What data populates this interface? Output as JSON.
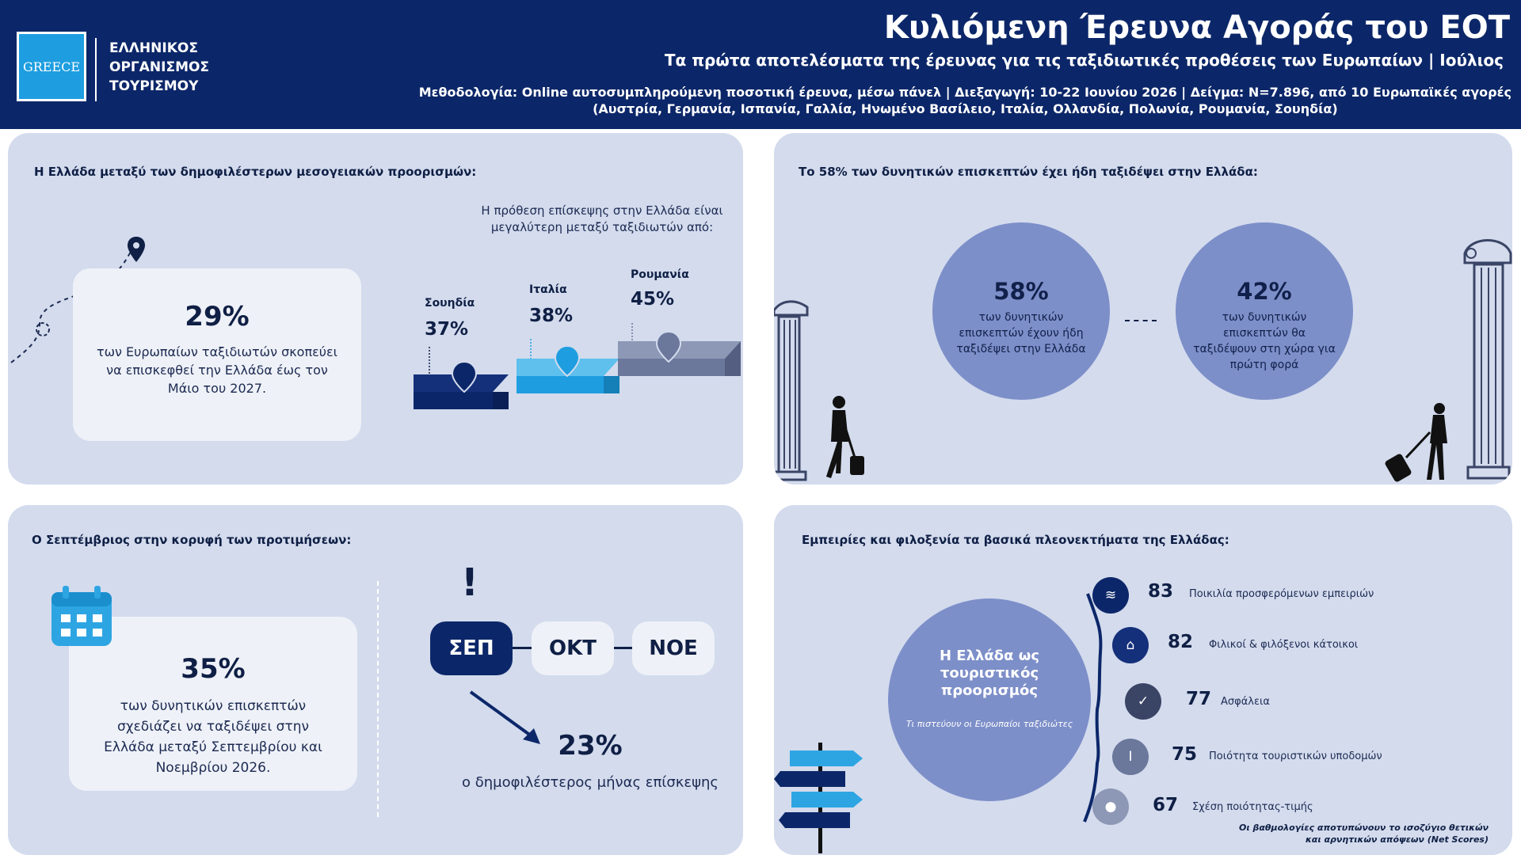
{
  "header": {
    "logo_text": "GREECE",
    "org_line1": "ΕΛΛΗΝΙΚΟΣ",
    "org_line2": "ΟΡΓΑΝΙΣΜΟΣ",
    "org_line3": "ΤΟΥΡΙΣΜΟΥ",
    "title": "Κυλιόμενη Έρευνα Αγοράς του ΕΟΤ",
    "subtitle": "Τα πρώτα αποτελέσματα της έρευνας για τις ταξιδιωτικές προθέσεις των Ευρωπαίων  | Ιούλιος",
    "methodology_line1": "Μεθοδολογία: Online αυτοσυμπληρούμενη ποσοτική έρευνα, μέσω πάνελ | Διεξαγωγή: 10-22 Ιουνίου 2026 | Δείγμα: Ν=7.896, από 10 Ευρωπαϊκές αγορές",
    "methodology_line2": "(Αυστρία, Γερμανία, Ισπανία, Γαλλία, Ηνωμένο Βασίλειο, Ιταλία, Ολλανδία, Πολωνία, Ρουμανία, Σουηδία)"
  },
  "panel1": {
    "title": "Η Ελλάδα μεταξύ των δημοφιλέστερων μεσογειακών προορισμών:",
    "big_value": "29%",
    "description": "των Ευρωπαίων ταξιδιωτών σκοπεύει να επισκεφθεί την Ελλάδα έως τον Μάιο του 2027.",
    "intent_note_line1": "Η πρόθεση επίσκεψης στην Ελλάδα είναι",
    "intent_note_line2": "μεγαλύτερη μεταξύ ταξιδιωτών από:",
    "countries": [
      {
        "name": "Σουηδία",
        "value": "37%",
        "color": "#0c2769"
      },
      {
        "name": "Ιταλία",
        "value": "38%",
        "color": "#1e9ee0"
      },
      {
        "name": "Ρουμανία",
        "value": "45%",
        "color": "#6b789c"
      }
    ]
  },
  "panel2": {
    "title": "Το 58% των δυνητικών επισκεπτών έχει ήδη ταξιδέψει στην Ελλάδα:",
    "circle1_value": "58%",
    "circle1_text": "των δυνητικών επισκεπτών έχουν ήδη ταξιδέψει στην Ελλάδα",
    "circle2_value": "42%",
    "circle2_text": "των δυνητικών επισκεπτών θα ταξιδέψουν στη χώρα για πρώτη φορά"
  },
  "panel3": {
    "title": "Ο Σεπτέμβριος στην κορυφή των προτιμήσεων:",
    "big_value": "35%",
    "description": "των δυνητικών επισκεπτών σχεδιάζει να ταξιδέψει στην Ελλάδα μεταξύ Σεπτεμβρίου και Νοεμβρίου 2026.",
    "months": [
      "ΣΕΠ",
      "ΟΚΤ",
      "ΝΟΕ"
    ],
    "exclamation": "!",
    "top_month_value": "23%",
    "top_month_text": "ο δημοφιλέστερος μήνας επίσκεψης"
  },
  "panel4": {
    "title": "Εμπειρίες και φιλοξενία τα βασικά πλεονεκτήματα της Ελλάδας:",
    "circle_title": "Η Ελλάδα ως τουριστικός προορισμός",
    "circle_sub": "Τι πιστεύουν οι Ευρωπαίοι ταξιδιώτες",
    "scores": [
      {
        "value": "83",
        "label": "Ποικιλία προσφερόμενων εμπειριών",
        "icon": "wave-icon"
      },
      {
        "value": "82",
        "label": "Φιλικοί & φιλόξενοι κάτοικοι",
        "icon": "house-icon"
      },
      {
        "value": "77",
        "label": "Ασφάλεια",
        "icon": "shield-icon"
      },
      {
        "value": "75",
        "label": "Ποιότητα τουριστικών υποδομών",
        "icon": "column-icon"
      },
      {
        "value": "67",
        "label": "Σχέση ποιότητας-τιμής",
        "icon": "coin-icon"
      }
    ],
    "footnote_line1": "Οι βαθμολογίες αποτυπώνουν το ισοζύγιο θετικών",
    "footnote_line2": "και αρνητικών απόψεων (Net Scores)"
  }
}
